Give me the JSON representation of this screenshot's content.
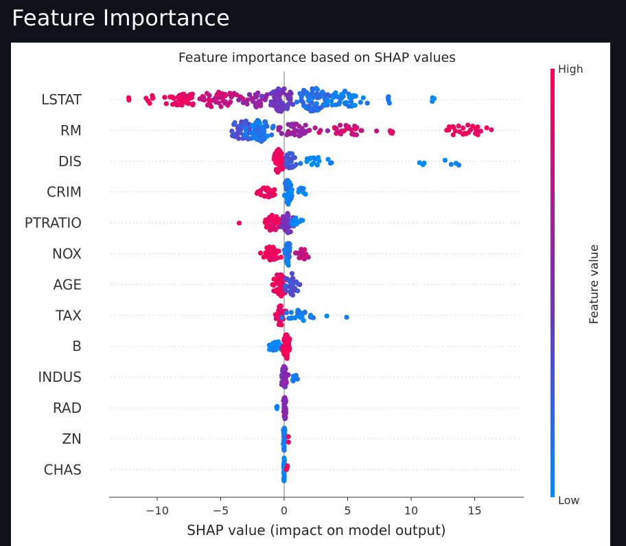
{
  "page": {
    "heading": "Feature Importance",
    "background_color": "#0e1117",
    "heading_color": "#fafafa",
    "figure_background": "#ffffff"
  },
  "chart_data": {
    "type": "scatter",
    "subtype": "shap-beeswarm",
    "title": "Feature importance based on SHAP values",
    "xlabel": "SHAP value (impact on model output)",
    "xlim": [
      -13.8,
      19.2
    ],
    "x_ticks": [
      -10,
      -5,
      0,
      5,
      10,
      15
    ],
    "x_tick_labels": [
      "−10",
      "−5",
      "0",
      "5",
      "10",
      "15"
    ],
    "features": [
      "LSTAT",
      "RM",
      "DIS",
      "CRIM",
      "PTRATIO",
      "NOX",
      "AGE",
      "TAX",
      "B",
      "INDUS",
      "RAD",
      "ZN",
      "CHAS"
    ],
    "colorbar": {
      "label": "Feature value",
      "high_label": "High",
      "low_label": "Low",
      "high_color": "#ff0052",
      "low_color": "#008bfb"
    },
    "point_colors": {
      "high": "#ff0052",
      "low": "#008bfb"
    },
    "vertical_line_x": 0,
    "rows": [
      {
        "feature": "LSTAT",
        "clusters": [
          {
            "center": -12.2,
            "spread": 0.1,
            "count": 2,
            "height": 0.3,
            "value": 1.0
          },
          {
            "center": -10.5,
            "spread": 0.5,
            "count": 6,
            "height": 0.4,
            "value": 0.95
          },
          {
            "center": -8.0,
            "spread": 1.3,
            "count": 40,
            "height": 0.9,
            "value": 0.9
          },
          {
            "center": -5.0,
            "spread": 1.3,
            "count": 45,
            "height": 1.5,
            "value": 0.78
          },
          {
            "center": -2.2,
            "spread": 0.9,
            "count": 30,
            "height": 1.2,
            "value": 0.6
          },
          {
            "center": -0.2,
            "spread": 0.8,
            "count": 60,
            "height": 2.6,
            "value": 0.42
          },
          {
            "center": 2.2,
            "spread": 1.0,
            "count": 60,
            "height": 2.3,
            "value": 0.15
          },
          {
            "center": 4.8,
            "spread": 1.2,
            "count": 40,
            "height": 1.4,
            "value": 0.05
          },
          {
            "center": 8.2,
            "spread": 0.2,
            "count": 4,
            "height": 0.4,
            "value": 0.02
          },
          {
            "center": 11.7,
            "spread": 0.1,
            "count": 3,
            "height": 0.4,
            "value": 0.0
          }
        ]
      },
      {
        "feature": "RM",
        "clusters": [
          {
            "center": -3.3,
            "spread": 0.8,
            "count": 40,
            "height": 1.8,
            "value": 0.3
          },
          {
            "center": -2.0,
            "spread": 0.7,
            "count": 60,
            "height": 2.6,
            "value": 0.1
          },
          {
            "center": 0.8,
            "spread": 1.5,
            "count": 45,
            "height": 0.9,
            "value": 0.62
          },
          {
            "center": 4.8,
            "spread": 1.6,
            "count": 28,
            "height": 0.6,
            "value": 0.82
          },
          {
            "center": 8.5,
            "spread": 0.6,
            "count": 4,
            "height": 0.3,
            "value": 0.92
          },
          {
            "center": 14.3,
            "spread": 1.8,
            "count": 26,
            "height": 0.6,
            "value": 0.95
          }
        ]
      },
      {
        "feature": "DIS",
        "clusters": [
          {
            "center": -0.4,
            "spread": 0.3,
            "count": 40,
            "height": 2.1,
            "value": 0.95
          },
          {
            "center": 0.5,
            "spread": 0.4,
            "count": 25,
            "height": 1.2,
            "value": 0.25
          },
          {
            "center": 2.6,
            "spread": 1.2,
            "count": 16,
            "height": 0.4,
            "value": 0.0
          },
          {
            "center": 11.0,
            "spread": 0.6,
            "count": 3,
            "height": 0.3,
            "value": 0.0
          },
          {
            "center": 14.0,
            "spread": 1.6,
            "count": 4,
            "height": 0.3,
            "value": 0.0
          }
        ]
      },
      {
        "feature": "CRIM",
        "clusters": [
          {
            "center": -1.3,
            "spread": 0.6,
            "count": 30,
            "height": 0.5,
            "value": 0.95
          },
          {
            "center": 0.3,
            "spread": 0.25,
            "count": 60,
            "height": 2.6,
            "value": 0.05
          },
          {
            "center": 1.4,
            "spread": 0.4,
            "count": 8,
            "height": 0.4,
            "value": 0.0
          }
        ]
      },
      {
        "feature": "PTRATIO",
        "clusters": [
          {
            "center": -3.6,
            "spread": 0.05,
            "count": 1,
            "height": 0.1,
            "value": 1.0
          },
          {
            "center": -1.0,
            "spread": 0.6,
            "count": 35,
            "height": 1.2,
            "value": 0.92
          },
          {
            "center": 0.3,
            "spread": 0.4,
            "count": 40,
            "height": 1.7,
            "value": 0.45
          },
          {
            "center": 1.0,
            "spread": 0.4,
            "count": 10,
            "height": 0.5,
            "value": 0.05
          }
        ]
      },
      {
        "feature": "NOX",
        "clusters": [
          {
            "center": -1.0,
            "spread": 0.6,
            "count": 45,
            "height": 1.0,
            "value": 0.95
          },
          {
            "center": 0.3,
            "spread": 0.2,
            "count": 40,
            "height": 2.2,
            "value": 0.12
          },
          {
            "center": 1.4,
            "spread": 0.5,
            "count": 18,
            "height": 0.7,
            "value": 0.78
          }
        ]
      },
      {
        "feature": "AGE",
        "clusters": [
          {
            "center": -0.3,
            "spread": 0.4,
            "count": 55,
            "height": 2.2,
            "value": 0.95
          },
          {
            "center": 0.6,
            "spread": 0.5,
            "count": 35,
            "height": 1.9,
            "value": 0.3
          }
        ]
      },
      {
        "feature": "TAX",
        "clusters": [
          {
            "center": -0.3,
            "spread": 0.3,
            "count": 40,
            "height": 1.6,
            "value": 0.9
          },
          {
            "center": 1.3,
            "spread": 0.9,
            "count": 25,
            "height": 0.7,
            "value": 0.05
          },
          {
            "center": 3.4,
            "spread": 0.1,
            "count": 1,
            "height": 0.1,
            "value": 0.0
          },
          {
            "center": 4.9,
            "spread": 0.05,
            "count": 1,
            "height": 0.1,
            "value": 0.0
          }
        ]
      },
      {
        "feature": "B",
        "clusters": [
          {
            "center": -0.7,
            "spread": 0.5,
            "count": 25,
            "height": 0.7,
            "value": 0.0
          },
          {
            "center": 0.2,
            "spread": 0.2,
            "count": 80,
            "height": 2.4,
            "value": 0.95
          }
        ]
      },
      {
        "feature": "INDUS",
        "clusters": [
          {
            "center": 0.0,
            "spread": 0.2,
            "count": 45,
            "height": 1.8,
            "value": 0.5
          },
          {
            "center": 0.8,
            "spread": 0.2,
            "count": 6,
            "height": 0.4,
            "value": 0.05
          }
        ]
      },
      {
        "feature": "RAD",
        "clusters": [
          {
            "center": 0.05,
            "spread": 0.08,
            "count": 40,
            "height": 1.9,
            "value": 0.55
          },
          {
            "center": -0.6,
            "spread": 0.15,
            "count": 3,
            "height": 0.3,
            "value": 0.05
          }
        ]
      },
      {
        "feature": "ZN",
        "clusters": [
          {
            "center": 0.0,
            "spread": 0.05,
            "count": 38,
            "height": 2.0,
            "value": 0.05
          },
          {
            "center": 0.3,
            "spread": 0.05,
            "count": 3,
            "height": 0.3,
            "value": 0.95
          }
        ]
      },
      {
        "feature": "CHAS",
        "clusters": [
          {
            "center": 0.0,
            "spread": 0.04,
            "count": 38,
            "height": 2.0,
            "value": 0.05
          },
          {
            "center": 0.25,
            "spread": 0.05,
            "count": 3,
            "height": 0.3,
            "value": 0.98
          }
        ]
      }
    ]
  }
}
